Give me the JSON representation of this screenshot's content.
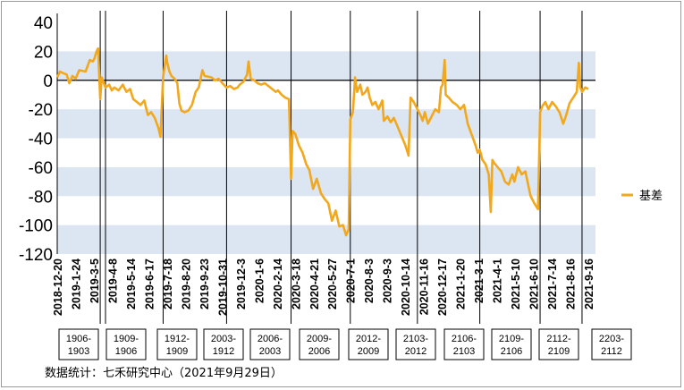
{
  "source_note": "数据统计：七禾研究中心（2021年9月29日）",
  "colors": {
    "series": "#F2A81D",
    "band": "#DCE6F2",
    "axis": "#000000",
    "divider": "#000000"
  },
  "chart_data": {
    "type": "line",
    "ylim": [
      -120,
      40
    ],
    "yticks": [
      40,
      20,
      0,
      -20,
      -40,
      -60,
      -80,
      -100,
      -120
    ],
    "grid": false,
    "bands": [
      [
        0,
        20
      ],
      [
        -40,
        -20
      ],
      [
        -80,
        -60
      ],
      [
        -120,
        -100
      ]
    ],
    "legend": {
      "position": "right",
      "label": "基差"
    },
    "xtick_labels": [
      "2018-12-20",
      "2019-1-24",
      "2019-3-5",
      "2019-4-8",
      "2019-5-14",
      "2019-6-17",
      "2019-7-18",
      "2019-8-20",
      "2019-9-23",
      "2019-10-31",
      "2019-12-3",
      "2020-1-6",
      "2020-2-14",
      "2020-3-18",
      "2020-4-21",
      "2020-5-27",
      "2020-7-1",
      "2020-8-3",
      "2020-9-3",
      "2020-10-14",
      "2020-11-16",
      "2020-12-17",
      "2021-1-20",
      "2021-3-1",
      "2021-4-1",
      "2021-5-10",
      "2021-6-10",
      "2021-7-14",
      "2021-8-16",
      "2021-9-16"
    ],
    "contract_periods": [
      "1906-1903",
      "1909-1906",
      "1912-1909",
      "2003-1912",
      "2006-2003",
      "2009-2006",
      "2012-2009",
      "2103-2012",
      "2106-2103",
      "2109-2106",
      "2112-2109",
      "2203-2112"
    ],
    "contract_switch_dates": [
      "2019-3-12",
      "2019-7-10",
      "2019-11-8",
      "2020-3-10",
      "2020-7-1",
      "2020-11-6",
      "2021-3-5",
      "2021-6-28",
      "2021-9-16"
    ],
    "series": [
      {
        "name": "基差",
        "points": [
          [
            "2018-12-20",
            2
          ],
          [
            "2018-12-25",
            6
          ],
          [
            "2018-12-31",
            5
          ],
          [
            "2019-1-7",
            4
          ],
          [
            "2019-1-12",
            -2
          ],
          [
            "2019-1-18",
            3
          ],
          [
            "2019-1-24",
            1
          ],
          [
            "2019-1-31",
            7
          ],
          [
            "2019-2-12",
            6
          ],
          [
            "2019-2-20",
            14
          ],
          [
            "2019-2-26",
            13
          ],
          [
            "2019-3-1",
            15
          ],
          [
            "2019-3-5",
            20
          ],
          [
            "2019-3-8",
            22
          ],
          [
            "2019-3-12",
            -13
          ],
          [
            "2019-3-15",
            2
          ],
          [
            "2019-3-22",
            -5
          ],
          [
            "2019-3-29",
            -3
          ],
          [
            "2019-4-3",
            -7
          ],
          [
            "2019-4-8",
            -5
          ],
          [
            "2019-4-16",
            -7
          ],
          [
            "2019-4-24",
            -3
          ],
          [
            "2019-5-1",
            -8
          ],
          [
            "2019-5-8",
            -6
          ],
          [
            "2019-5-14",
            -13
          ],
          [
            "2019-5-21",
            -15
          ],
          [
            "2019-5-28",
            -17
          ],
          [
            "2019-6-4",
            -14
          ],
          [
            "2019-6-11",
            -24
          ],
          [
            "2019-6-17",
            -22
          ],
          [
            "2019-6-24",
            -26
          ],
          [
            "2019-7-1",
            -33
          ],
          [
            "2019-7-5",
            -39
          ],
          [
            "2019-7-10",
            2
          ],
          [
            "2019-7-13",
            10
          ],
          [
            "2019-7-16",
            17
          ],
          [
            "2019-7-18",
            12
          ],
          [
            "2019-7-22",
            6
          ],
          [
            "2019-7-26",
            3
          ],
          [
            "2019-8-1",
            1
          ],
          [
            "2019-8-6",
            -2
          ],
          [
            "2019-8-10",
            -16
          ],
          [
            "2019-8-14",
            -21
          ],
          [
            "2019-8-20",
            -22
          ],
          [
            "2019-8-27",
            -21
          ],
          [
            "2019-9-3",
            -17
          ],
          [
            "2019-9-10",
            -8
          ],
          [
            "2019-9-16",
            -5
          ],
          [
            "2019-9-23",
            7
          ],
          [
            "2019-9-27",
            3
          ],
          [
            "2019-10-10",
            2
          ],
          [
            "2019-10-17",
            0
          ],
          [
            "2019-10-24",
            1
          ],
          [
            "2019-10-31",
            -2
          ],
          [
            "2019-11-8",
            -5
          ],
          [
            "2019-11-15",
            -4
          ],
          [
            "2019-11-22",
            -6
          ],
          [
            "2019-11-29",
            -5
          ],
          [
            "2019-12-3",
            -3
          ],
          [
            "2019-12-10",
            -1
          ],
          [
            "2019-12-17",
            4
          ],
          [
            "2019-12-20",
            13
          ],
          [
            "2019-12-24",
            1
          ],
          [
            "2019-12-31",
            0
          ],
          [
            "2020-1-6",
            -2
          ],
          [
            "2020-1-13",
            -3
          ],
          [
            "2020-1-20",
            -2
          ],
          [
            "2020-2-3",
            -6
          ],
          [
            "2020-2-10",
            -8
          ],
          [
            "2020-2-14",
            -7
          ],
          [
            "2020-2-21",
            -10
          ],
          [
            "2020-2-28",
            -12
          ],
          [
            "2020-3-6",
            -13
          ],
          [
            "2020-3-10",
            -68
          ],
          [
            "2020-3-13",
            -35
          ],
          [
            "2020-3-18",
            -37
          ],
          [
            "2020-3-25",
            -45
          ],
          [
            "2020-4-1",
            -50
          ],
          [
            "2020-4-8",
            -58
          ],
          [
            "2020-4-14",
            -62
          ],
          [
            "2020-4-21",
            -75
          ],
          [
            "2020-4-28",
            -68
          ],
          [
            "2020-5-6",
            -78
          ],
          [
            "2020-5-13",
            -82
          ],
          [
            "2020-5-20",
            -85
          ],
          [
            "2020-5-27",
            -97
          ],
          [
            "2020-6-3",
            -90
          ],
          [
            "2020-6-10",
            -101
          ],
          [
            "2020-6-17",
            -100
          ],
          [
            "2020-6-23",
            -107
          ],
          [
            "2020-6-28",
            -103
          ],
          [
            "2020-7-1",
            -27
          ],
          [
            "2020-7-6",
            -22
          ],
          [
            "2020-7-10",
            2
          ],
          [
            "2020-7-14",
            -8
          ],
          [
            "2020-7-20",
            -3
          ],
          [
            "2020-7-24",
            -10
          ],
          [
            "2020-7-30",
            -8
          ],
          [
            "2020-8-3",
            -5
          ],
          [
            "2020-8-7",
            -12
          ],
          [
            "2020-8-12",
            -17
          ],
          [
            "2020-8-18",
            -15
          ],
          [
            "2020-8-24",
            -20
          ],
          [
            "2020-8-31",
            -14
          ],
          [
            "2020-9-3",
            -28
          ],
          [
            "2020-9-10",
            -25
          ],
          [
            "2020-9-16",
            -29
          ],
          [
            "2020-9-22",
            -26
          ],
          [
            "2020-9-28",
            -31
          ],
          [
            "2020-10-14",
            -45
          ],
          [
            "2020-10-20",
            -52
          ],
          [
            "2020-10-24",
            -12
          ],
          [
            "2020-10-30",
            -15
          ],
          [
            "2020-11-6",
            -20
          ],
          [
            "2020-11-13",
            -25
          ],
          [
            "2020-11-16",
            -28
          ],
          [
            "2020-11-20",
            -22
          ],
          [
            "2020-11-26",
            -30
          ],
          [
            "2020-12-3",
            -25
          ],
          [
            "2020-12-10",
            -20
          ],
          [
            "2020-12-17",
            -22
          ],
          [
            "2020-12-21",
            -5
          ],
          [
            "2020-12-24",
            -3
          ],
          [
            "2020-12-28",
            14
          ],
          [
            "2020-12-30",
            -10
          ],
          [
            "2021-1-5",
            -12
          ],
          [
            "2021-1-12",
            -15
          ],
          [
            "2021-1-20",
            -17
          ],
          [
            "2021-1-27",
            -20
          ],
          [
            "2021-2-3",
            -17
          ],
          [
            "2021-2-10",
            -30
          ],
          [
            "2021-2-20",
            -40
          ],
          [
            "2021-2-25",
            -45
          ],
          [
            "2021-3-1",
            -50
          ],
          [
            "2021-3-5",
            -48
          ],
          [
            "2021-3-10",
            -55
          ],
          [
            "2021-3-16",
            -58
          ],
          [
            "2021-3-22",
            -65
          ],
          [
            "2021-3-26",
            -91
          ],
          [
            "2021-3-29",
            -55
          ],
          [
            "2021-4-1",
            -57
          ],
          [
            "2021-4-8",
            -60
          ],
          [
            "2021-4-15",
            -63
          ],
          [
            "2021-4-22",
            -70
          ],
          [
            "2021-4-29",
            -72
          ],
          [
            "2021-5-6",
            -65
          ],
          [
            "2021-5-10",
            -70
          ],
          [
            "2021-5-17",
            -60
          ],
          [
            "2021-5-24",
            -65
          ],
          [
            "2021-5-31",
            -63
          ],
          [
            "2021-6-7",
            -75
          ],
          [
            "2021-6-10",
            -80
          ],
          [
            "2021-6-17",
            -85
          ],
          [
            "2021-6-24",
            -89
          ],
          [
            "2021-6-28",
            -22
          ],
          [
            "2021-7-2",
            -18
          ],
          [
            "2021-7-8",
            -15
          ],
          [
            "2021-7-14",
            -20
          ],
          [
            "2021-7-21",
            -15
          ],
          [
            "2021-7-28",
            -18
          ],
          [
            "2021-8-4",
            -22
          ],
          [
            "2021-8-11",
            -30
          ],
          [
            "2021-8-16",
            -25
          ],
          [
            "2021-8-23",
            -16
          ],
          [
            "2021-8-30",
            -12
          ],
          [
            "2021-9-6",
            -8
          ],
          [
            "2021-9-10",
            12
          ],
          [
            "2021-9-13",
            -5
          ],
          [
            "2021-9-16",
            -8
          ],
          [
            "2021-9-22",
            -5
          ],
          [
            "2021-9-28",
            -6
          ]
        ]
      }
    ]
  }
}
